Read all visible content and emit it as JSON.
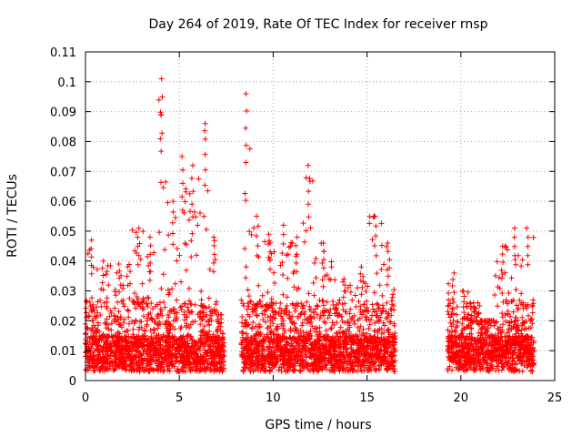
{
  "chart_data": {
    "type": "scatter",
    "title": "Day 264 of 2019, Rate Of TEC Index for receiver rnsp",
    "xlabel": "GPS time / hours",
    "ylabel": "ROTI / TECUs",
    "xlim": [
      0,
      25
    ],
    "ylim": [
      0,
      0.11
    ],
    "xticks": [
      0,
      5,
      10,
      15,
      20,
      25
    ],
    "xtick_labels": [
      "0",
      "5",
      "10",
      "15",
      "20",
      "25"
    ],
    "yticks": [
      0,
      0.01,
      0.02,
      0.03,
      0.04,
      0.05,
      0.06,
      0.07,
      0.08,
      0.09,
      0.1,
      0.11
    ],
    "ytick_labels": [
      "0",
      "0.01",
      "0.02",
      "0.03",
      "0.04",
      "0.05",
      "0.06",
      "0.07",
      "0.08",
      "0.09",
      "0.1",
      "0.11"
    ],
    "grid": true,
    "marker": "+",
    "marker_color": "#ff0000",
    "segments": [
      {
        "start": 0.0,
        "end": 0.6,
        "max": 0.047
      },
      {
        "start": 0.6,
        "end": 1.3,
        "max": 0.04
      },
      {
        "start": 1.3,
        "end": 2.4,
        "max": 0.039
      },
      {
        "start": 2.4,
        "end": 3.2,
        "max": 0.051
      },
      {
        "start": 3.2,
        "end": 3.7,
        "max": 0.048
      },
      {
        "start": 3.7,
        "end": 4.4,
        "max": 0.101
      },
      {
        "start": 4.4,
        "end": 4.9,
        "max": 0.06
      },
      {
        "start": 4.9,
        "end": 5.4,
        "max": 0.075
      },
      {
        "start": 5.4,
        "end": 6.0,
        "max": 0.072
      },
      {
        "start": 6.0,
        "end": 6.7,
        "max": 0.086
      },
      {
        "start": 6.7,
        "end": 7.0,
        "max": 0.048
      },
      {
        "start": 7.0,
        "end": 7.4,
        "max": 0.022
      },
      {
        "start": 8.3,
        "end": 8.8,
        "max": 0.096
      },
      {
        "start": 8.8,
        "end": 9.5,
        "max": 0.055
      },
      {
        "start": 9.5,
        "end": 10.1,
        "max": 0.049
      },
      {
        "start": 10.1,
        "end": 10.9,
        "max": 0.052
      },
      {
        "start": 10.9,
        "end": 11.6,
        "max": 0.048
      },
      {
        "start": 11.6,
        "end": 12.2,
        "max": 0.072
      },
      {
        "start": 12.2,
        "end": 13.2,
        "max": 0.046
      },
      {
        "start": 13.2,
        "end": 14.3,
        "max": 0.034
      },
      {
        "start": 14.3,
        "end": 15.1,
        "max": 0.038
      },
      {
        "start": 15.1,
        "end": 15.8,
        "max": 0.055
      },
      {
        "start": 15.8,
        "end": 16.5,
        "max": 0.046
      },
      {
        "start": 19.3,
        "end": 19.9,
        "max": 0.036
      },
      {
        "start": 19.9,
        "end": 20.4,
        "max": 0.03
      },
      {
        "start": 20.4,
        "end": 21.0,
        "max": 0.026
      },
      {
        "start": 21.0,
        "end": 21.8,
        "max": 0.02
      },
      {
        "start": 21.8,
        "end": 22.6,
        "max": 0.045
      },
      {
        "start": 22.6,
        "end": 23.2,
        "max": 0.051
      },
      {
        "start": 23.2,
        "end": 23.9,
        "max": 0.051
      }
    ]
  }
}
